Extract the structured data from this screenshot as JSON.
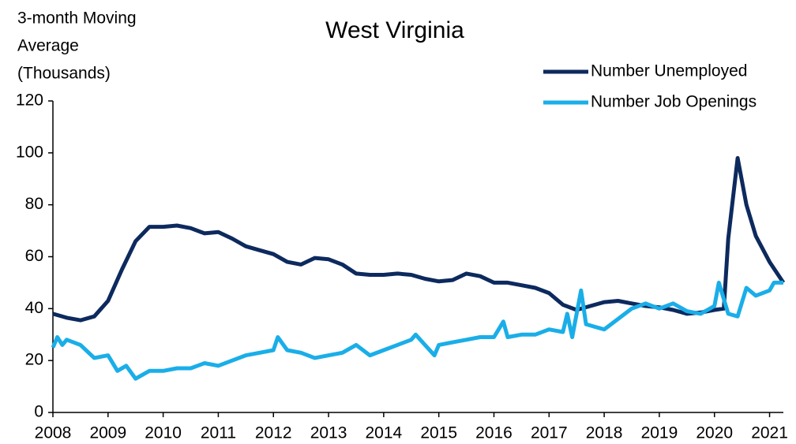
{
  "chart_data": {
    "type": "line",
    "title": "West Virginia",
    "y_label": [
      "3-month Moving",
      "Average",
      "(Thousands)"
    ],
    "xlim": [
      2008,
      2021.25
    ],
    "xticks": [
      2008,
      2009,
      2010,
      2011,
      2012,
      2013,
      2014,
      2015,
      2016,
      2017,
      2018,
      2019,
      2020,
      2021
    ],
    "ylim": [
      0,
      120
    ],
    "yticks": [
      0,
      20,
      40,
      60,
      80,
      100,
      120
    ],
    "legend": "upper right",
    "series": [
      {
        "name": "Number Unemployed",
        "color": "#0d2a5e",
        "x": [
          2008,
          2008.25,
          2008.5,
          2008.75,
          2009,
          2009.25,
          2009.5,
          2009.75,
          2010,
          2010.25,
          2010.5,
          2010.75,
          2011,
          2011.25,
          2011.5,
          2011.75,
          2012,
          2012.25,
          2012.5,
          2012.75,
          2013,
          2013.25,
          2013.5,
          2013.75,
          2014,
          2014.25,
          2014.5,
          2014.75,
          2015,
          2015.25,
          2015.5,
          2015.75,
          2016,
          2016.25,
          2016.5,
          2016.75,
          2017,
          2017.25,
          2017.5,
          2017.75,
          2018,
          2018.25,
          2018.5,
          2018.75,
          2019,
          2019.25,
          2019.5,
          2019.75,
          2020,
          2020.17,
          2020.25,
          2020.42,
          2020.58,
          2020.75,
          2021,
          2021.25
        ],
        "values": [
          38,
          36.5,
          35.5,
          37,
          43,
          55,
          66,
          71.5,
          71.5,
          72,
          71,
          69,
          69.5,
          67,
          64,
          62.5,
          61,
          58,
          57,
          59.5,
          59,
          57,
          53.5,
          53,
          53,
          53.5,
          53,
          51.5,
          50.5,
          51,
          53.5,
          52.5,
          50,
          50,
          49,
          48,
          46,
          41.5,
          39.5,
          41,
          42.5,
          43,
          42,
          41,
          40.5,
          39.5,
          38,
          38.5,
          39.5,
          40,
          67,
          98,
          80,
          68,
          58,
          50
        ]
      },
      {
        "name": "Number Job Openings",
        "color": "#1aaee8",
        "x": [
          2008,
          2008.08,
          2008.17,
          2008.25,
          2008.5,
          2008.75,
          2009,
          2009.17,
          2009.33,
          2009.5,
          2009.75,
          2010,
          2010.25,
          2010.5,
          2010.75,
          2011,
          2011.25,
          2011.5,
          2011.75,
          2012,
          2012.08,
          2012.25,
          2012.5,
          2012.75,
          2013,
          2013.25,
          2013.5,
          2013.75,
          2014,
          2014.25,
          2014.5,
          2014.58,
          2014.75,
          2014.92,
          2015,
          2015.25,
          2015.5,
          2015.75,
          2016,
          2016.17,
          2016.25,
          2016.5,
          2016.75,
          2017,
          2017.25,
          2017.33,
          2017.42,
          2017.58,
          2017.67,
          2017.83,
          2018,
          2018.25,
          2018.5,
          2018.75,
          2019,
          2019.25,
          2019.5,
          2019.75,
          2020,
          2020.08,
          2020.25,
          2020.42,
          2020.58,
          2020.75,
          2021,
          2021.08,
          2021.25
        ],
        "values": [
          25,
          29,
          26,
          28,
          26,
          21,
          22,
          16,
          18,
          13,
          16,
          16,
          17,
          17,
          19,
          18,
          20,
          22,
          23,
          24,
          29,
          24,
          23,
          21,
          22,
          23,
          26,
          22,
          24,
          26,
          28,
          30,
          26,
          22,
          26,
          27,
          28,
          29,
          29,
          35,
          29,
          30,
          30,
          32,
          31,
          38,
          29,
          47,
          34,
          33,
          32,
          36,
          40,
          42,
          40,
          42,
          39,
          38,
          41,
          50,
          38,
          37,
          48,
          45,
          47,
          50,
          50
        ]
      }
    ]
  }
}
